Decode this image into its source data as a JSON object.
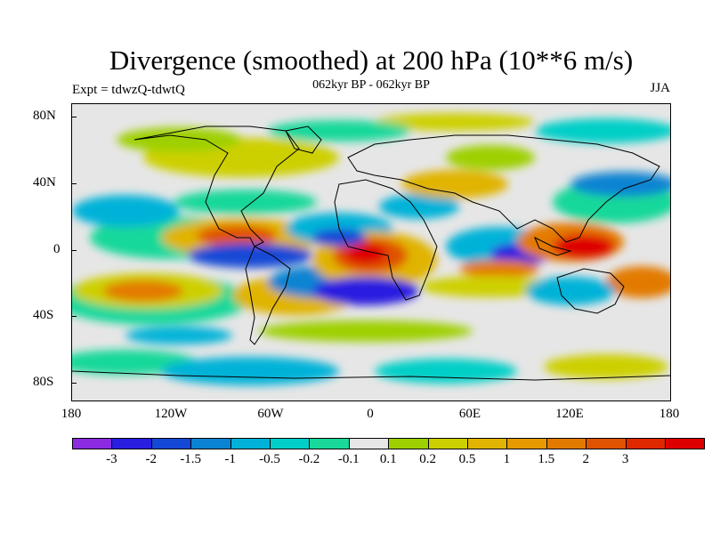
{
  "plot": {
    "title": "Divergence (smoothed) at 200 hPa (10**6 m/s)",
    "experiment": "Expt = tdwzQ-tdwtQ",
    "period": "062kyr BP - 062kyr BP",
    "season": "JJA"
  },
  "axes": {
    "lat_labels": [
      "80N",
      "40N",
      "0",
      "40S",
      "80S"
    ],
    "lon_labels": [
      "180",
      "120W",
      "60W",
      "0",
      "60E",
      "120E",
      "180"
    ]
  },
  "colorbar": {
    "colors": [
      "#8a2be2",
      "#2a1ee0",
      "#1448d6",
      "#0a84d2",
      "#00b2d8",
      "#00cfc7",
      "#18d89a",
      "#e6e6e6",
      "#9ed000",
      "#cdd000",
      "#e0b400",
      "#e59a00",
      "#e37a00",
      "#e05300",
      "#e02800",
      "#de0000"
    ],
    "labels": [
      "-3",
      "-2",
      "-1.5",
      "-1",
      "-0.5",
      "-0.2",
      "-0.1",
      "0.1",
      "0.2",
      "0.5",
      "1",
      "1.5",
      "2",
      "3"
    ]
  }
}
